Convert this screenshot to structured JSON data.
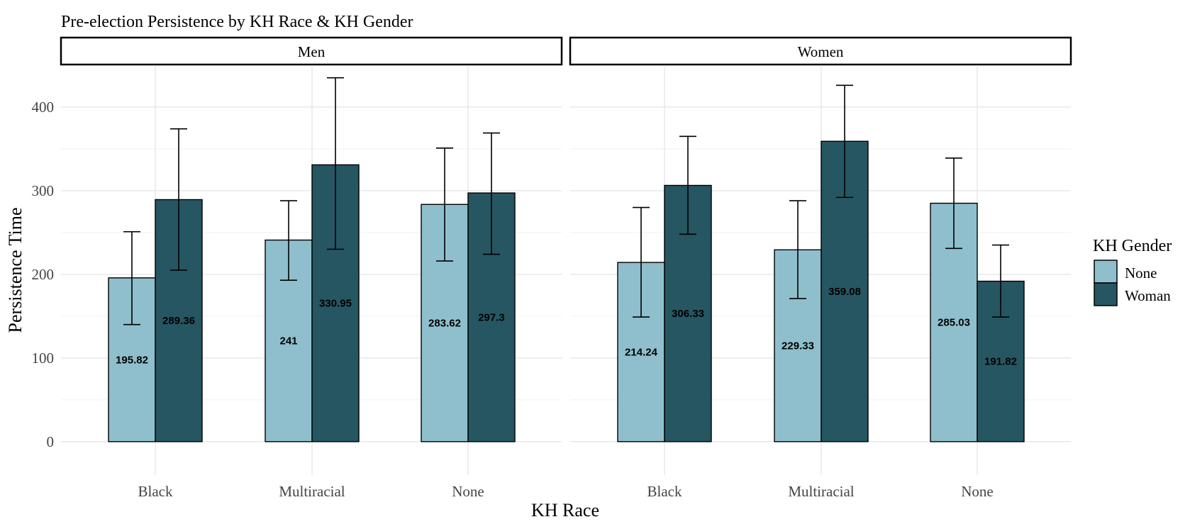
{
  "chart_data": {
    "type": "bar",
    "title": "Pre-election Persistence by KH Race & KH Gender",
    "xlabel": "KH Race",
    "ylabel": "Persistence Time",
    "ylim": [
      -40,
      450
    ],
    "yticks": [
      0,
      100,
      200,
      300,
      400
    ],
    "ytick_labels": [
      "0",
      "100",
      "200",
      "300",
      "400"
    ],
    "categories": [
      "Black",
      "Multiracial",
      "None"
    ],
    "legend": {
      "title": "KH Gender",
      "position": "right",
      "entries": [
        {
          "label": "None",
          "color": "#8fbfcc"
        },
        {
          "label": "Woman",
          "color": "#265662"
        }
      ]
    },
    "grid": true,
    "panels": [
      {
        "label": "Men",
        "series": [
          {
            "name": "None",
            "values": [
              195.82,
              241,
              283.62
            ],
            "value_labels": [
              "195.82",
              "241",
              "283.62"
            ],
            "error_low": [
              140,
              193,
              216
            ],
            "error_high": [
              251,
              288,
              351
            ]
          },
          {
            "name": "Woman",
            "values": [
              289.36,
              330.95,
              297.3
            ],
            "value_labels": [
              "289.36",
              "330.95",
              "297.3"
            ],
            "error_low": [
              205,
              230,
              224
            ],
            "error_high": [
              374,
              435,
              369
            ]
          }
        ]
      },
      {
        "label": "Women",
        "series": [
          {
            "name": "None",
            "values": [
              214.24,
              229.33,
              285.03
            ],
            "value_labels": [
              "214.24",
              "229.33",
              "285.03"
            ],
            "error_low": [
              149,
              171,
              231
            ],
            "error_high": [
              280,
              288,
              339
            ]
          },
          {
            "name": "Woman",
            "values": [
              306.33,
              359.08,
              191.82
            ],
            "value_labels": [
              "306.33",
              "359.08",
              "191.82"
            ],
            "error_low": [
              248,
              292,
              149
            ],
            "error_high": [
              365,
              426,
              235
            ]
          }
        ]
      }
    ]
  }
}
